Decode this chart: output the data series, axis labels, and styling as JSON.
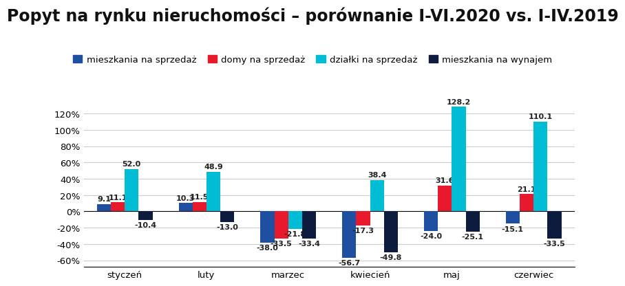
{
  "title": "Popyt na rynku nieruchomości – porównanie I-VI.2020 vs. I-IV.2019",
  "categories": [
    "styczeń",
    "luty",
    "marzec",
    "kwiecień",
    "maj",
    "czerwiec"
  ],
  "series": {
    "mieszkania na sprzedaż": [
      9.1,
      10.3,
      -38.0,
      -56.7,
      -24.0,
      -15.1
    ],
    "domy na sprzedaż": [
      11.1,
      11.5,
      -33.5,
      -17.3,
      31.6,
      21.1
    ],
    "działki na sprzedaż": [
      52.0,
      48.9,
      -21.8,
      38.4,
      128.2,
      110.1
    ],
    "mieszkania na wynajem": [
      -10.4,
      -13.0,
      -33.4,
      -49.8,
      -25.1,
      -33.5
    ]
  },
  "colors": {
    "mieszkania na sprzedaż": "#1f4fa0",
    "domy na sprzedaż": "#e8192c",
    "działki na sprzedaż": "#00bcd4",
    "mieszkania na wynajem": "#0d1b3e"
  },
  "ylim": [
    -68,
    145
  ],
  "yticks": [
    -60,
    -40,
    -20,
    0,
    20,
    40,
    60,
    80,
    100,
    120
  ],
  "ytick_labels": [
    "-60%",
    "-40%",
    "-20%",
    "0%",
    "20%",
    "40%",
    "60%",
    "80%",
    "100%",
    "120%"
  ],
  "bar_width": 0.17,
  "background_color": "#ffffff",
  "grid_color": "#cccccc",
  "title_fontsize": 17,
  "label_fontsize": 8,
  "tick_fontsize": 9.5,
  "legend_fontsize": 9.5
}
